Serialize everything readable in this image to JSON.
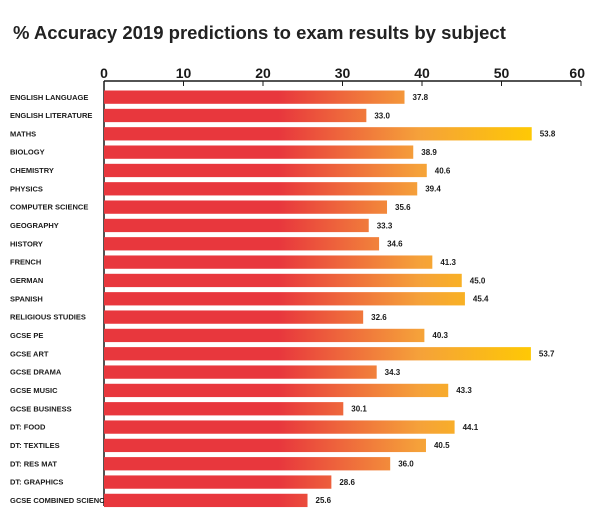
{
  "chart_data": {
    "type": "bar",
    "orientation": "horizontal",
    "title": "% Accuracy 2019 predictions to exam results by subject",
    "xlim": [
      0,
      60
    ],
    "xticks": [
      0,
      10,
      20,
      30,
      40,
      50,
      60
    ],
    "axis_position": "top",
    "grid": false,
    "legend": "none",
    "categories": [
      "ENGLISH LANGUAGE",
      "ENGLISH LITERATURE",
      "MATHS",
      "BIOLOGY",
      "CHEMISTRY",
      "PHYSICS",
      "COMPUTER SCIENCE",
      "GEOGRAPHY",
      "HISTORY",
      "FRENCH",
      "GERMAN",
      "SPANISH",
      "RELIGIOUS STUDIES",
      "GCSE PE",
      "GCSE ART",
      "GCSE DRAMA",
      "GCSE MUSIC",
      "GCSE BUSINESS",
      "DT: FOOD",
      "DT: TEXTILES",
      "DT: RES MAT",
      "DT: GRAPHICS",
      "GCSE COMBINED SCIENCE"
    ],
    "values": [
      37.8,
      33.0,
      53.8,
      38.9,
      40.6,
      39.4,
      35.6,
      33.3,
      34.6,
      41.3,
      45.0,
      45.4,
      32.6,
      40.3,
      53.7,
      34.3,
      43.3,
      30.1,
      44.1,
      40.5,
      36.0,
      28.6,
      25.6
    ],
    "value_labels": [
      "37.8",
      "33.0",
      "53.8",
      "38.9",
      "40.6",
      "39.4",
      "35.6",
      "33.3",
      "34.6",
      "41.3",
      "45.0",
      "45.4",
      "32.6",
      "40.3",
      "53.7",
      "34.3",
      "43.3",
      "30.1",
      "44.1",
      "40.5",
      "36.0",
      "28.6",
      "25.6"
    ],
    "colors": {
      "low": "#e8373d",
      "mid": "#f5a13a",
      "high": "#ffcc00",
      "axis": "#1a1a1a"
    }
  }
}
